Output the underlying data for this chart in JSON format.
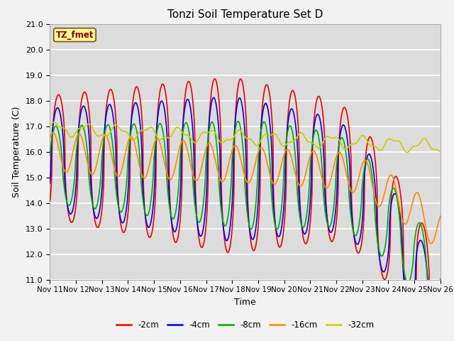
{
  "title": "Tonzi Soil Temperature Set D",
  "xlabel": "Time",
  "ylabel": "Soil Temperature (C)",
  "ylim": [
    11.0,
    21.0
  ],
  "yticks": [
    11.0,
    12.0,
    13.0,
    14.0,
    15.0,
    16.0,
    17.0,
    18.0,
    19.0,
    20.0,
    21.0
  ],
  "xtick_labels": [
    "Nov 11",
    "Nov 12",
    "Nov 13",
    "Nov 14",
    "Nov 15",
    "Nov 16",
    "Nov 17",
    "Nov 18",
    "Nov 19",
    "Nov 20",
    "Nov 21",
    "Nov 22",
    "Nov 23",
    "Nov 24",
    "Nov 25",
    "Nov 26"
  ],
  "annotation_text": "TZ_fmet",
  "annotation_color": "#8B0000",
  "annotation_bg": "#FFFF99",
  "annotation_border": "#8B4513",
  "series": [
    {
      "label": "-2cm",
      "color": "#EE0000",
      "linewidth": 1.2
    },
    {
      "label": "-4cm",
      "color": "#0000EE",
      "linewidth": 1.2
    },
    {
      "label": "-8cm",
      "color": "#00AA00",
      "linewidth": 1.2
    },
    {
      "label": "-16cm",
      "color": "#FF8800",
      "linewidth": 1.2
    },
    {
      "label": "-32cm",
      "color": "#CCCC00",
      "linewidth": 1.2
    }
  ],
  "bg_color": "#DCDCDC",
  "plot_bg_color": "#DCDCDC",
  "grid_color": "#FFFFFF",
  "fig_bg_color": "#F2F2F2"
}
